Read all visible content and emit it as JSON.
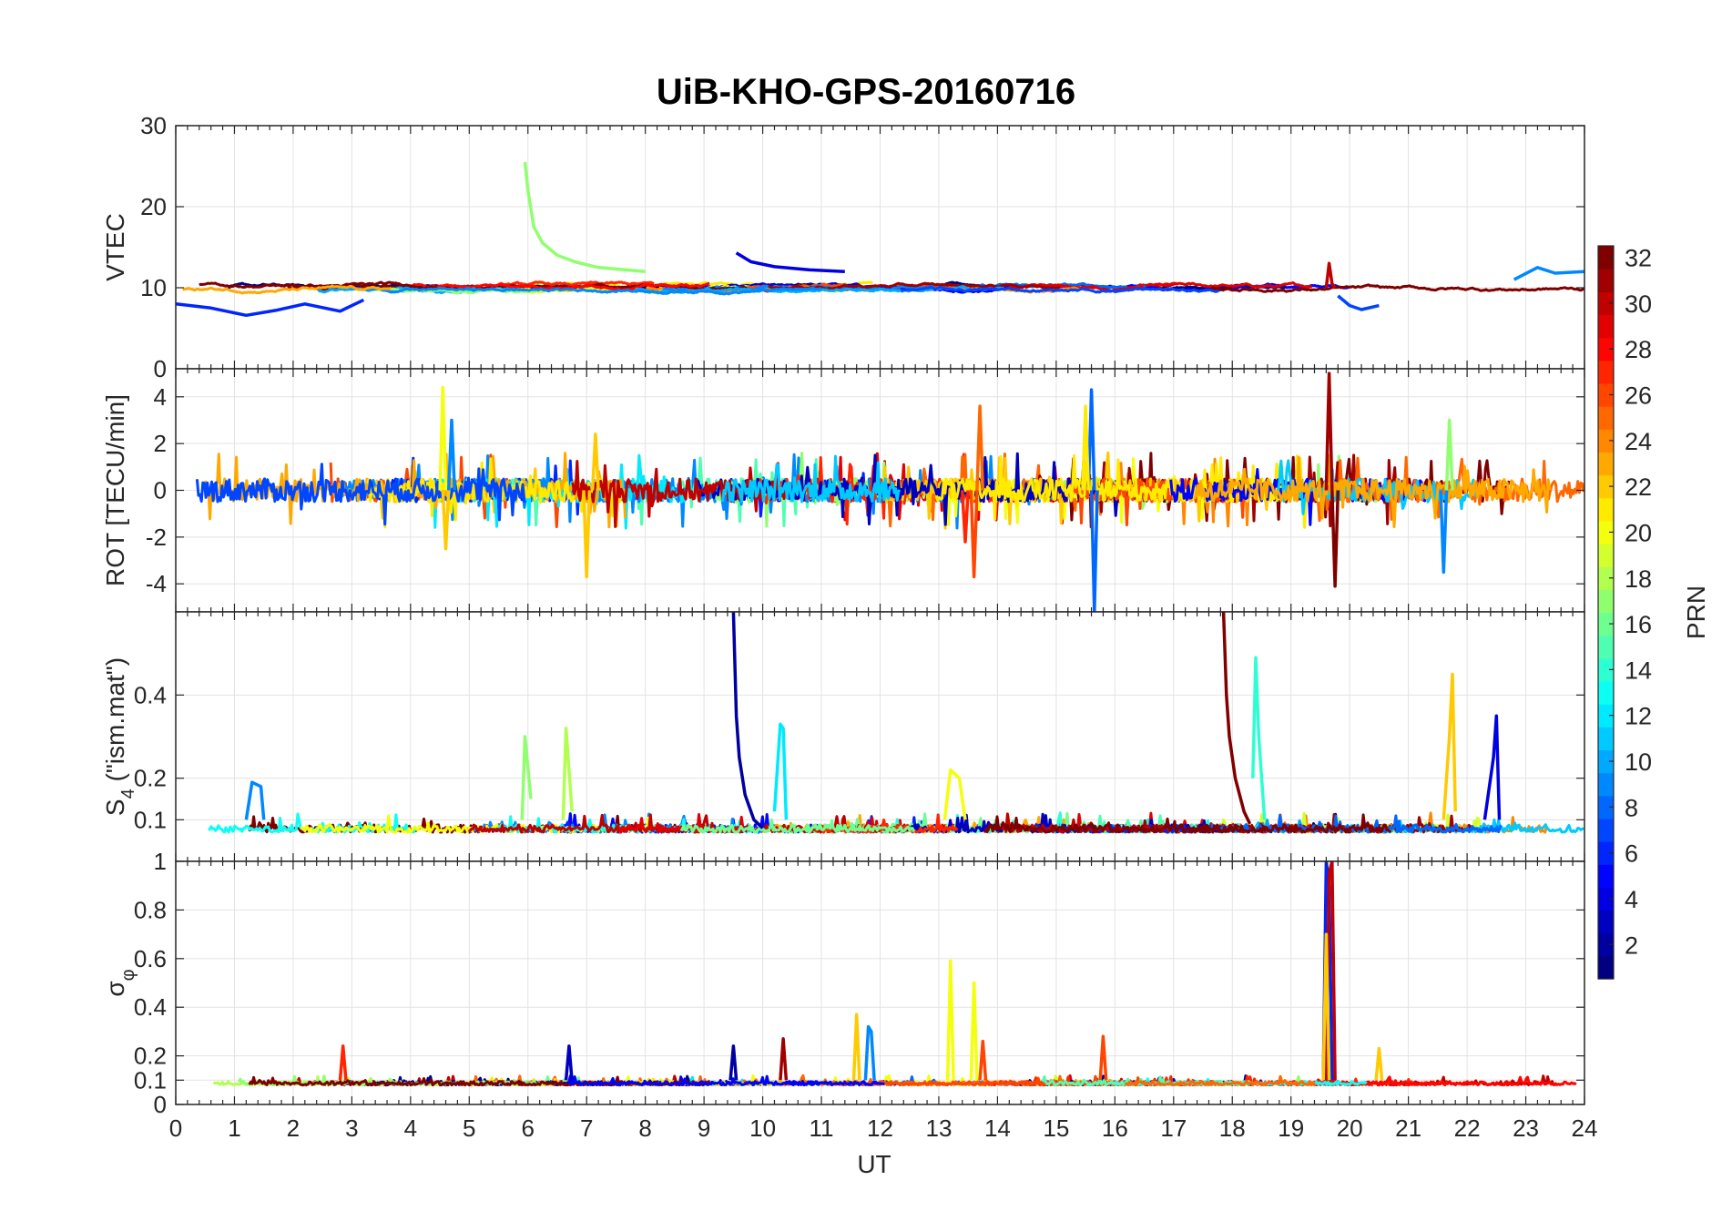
{
  "chart_data": {
    "title": "UiB-KHO-GPS-20160716",
    "type": "line",
    "xlabel": "UT",
    "xlim": [
      0,
      24
    ],
    "xticks": [
      0,
      1,
      2,
      3,
      4,
      5,
      6,
      7,
      8,
      9,
      10,
      11,
      12,
      13,
      14,
      15,
      16,
      17,
      18,
      19,
      20,
      21,
      22,
      23,
      24
    ],
    "grid": true,
    "colorbar": {
      "label": "PRN",
      "range": [
        1,
        32
      ],
      "ticks": [
        2,
        4,
        6,
        8,
        10,
        12,
        14,
        16,
        18,
        20,
        22,
        24,
        26,
        28,
        30,
        32
      ],
      "colormap": "jet"
    },
    "panels": [
      {
        "ylabel": "VTEC",
        "ylim": [
          0,
          30
        ],
        "yticks": [
          0,
          10,
          20,
          30
        ],
        "baseline": 10,
        "noise": 0.6,
        "features": [
          {
            "prn": 17,
            "x": [
              5.95,
              6.0,
              6.1,
              6.25,
              6.5,
              6.8,
              7.2,
              8.0
            ],
            "y": [
              25.5,
              22.0,
              17.5,
              15.5,
              14.0,
              13.2,
              12.5,
              12.0
            ]
          },
          {
            "prn": 4,
            "x": [
              9.55,
              9.8,
              10.2,
              10.8,
              11.4
            ],
            "y": [
              14.3,
              13.2,
              12.6,
              12.2,
              12.0
            ]
          },
          {
            "prn": 6,
            "x": [
              0.0,
              0.6,
              1.2,
              1.7,
              2.2,
              2.8,
              3.2
            ],
            "y": [
              8.0,
              7.5,
              6.6,
              7.2,
              8.0,
              7.1,
              8.5
            ]
          },
          {
            "prn": 30,
            "x": [
              19.6,
              19.65,
              19.7,
              19.75
            ],
            "y": [
              10.0,
              13.0,
              10.5,
              10.0
            ]
          },
          {
            "prn": 7,
            "x": [
              19.8,
              20.0,
              20.2,
              20.5
            ],
            "y": [
              9.0,
              7.8,
              7.3,
              7.8
            ]
          },
          {
            "prn": 9,
            "x": [
              22.8,
              23.2,
              23.5,
              24.0
            ],
            "y": [
              11.0,
              12.5,
              11.8,
              12.0
            ]
          }
        ]
      },
      {
        "ylabel": "ROT [TECU/min]",
        "ylim": [
          -5.2,
          5.2
        ],
        "yticks": [
          -4,
          -2,
          0,
          2,
          4
        ],
        "baseline": 0,
        "noise": 0.9,
        "features": [
          {
            "prn": 20,
            "x": [
              4.5,
              4.55,
              4.6
            ],
            "y": [
              0,
              4.4,
              0
            ]
          },
          {
            "prn": 9,
            "x": [
              4.65,
              4.7,
              4.75
            ],
            "y": [
              0,
              3.0,
              0
            ]
          },
          {
            "prn": 22,
            "x": [
              4.55,
              4.6,
              4.65
            ],
            "y": [
              0,
              -2.5,
              0
            ]
          },
          {
            "prn": 22,
            "x": [
              6.95,
              7.0,
              7.05
            ],
            "y": [
              0,
              -3.7,
              0
            ]
          },
          {
            "prn": 22,
            "x": [
              7.1,
              7.15,
              7.2
            ],
            "y": [
              0,
              2.4,
              0
            ]
          },
          {
            "prn": 26,
            "x": [
              13.55,
              13.6,
              13.65
            ],
            "y": [
              0,
              -3.7,
              0
            ]
          },
          {
            "prn": 25,
            "x": [
              13.65,
              13.7,
              13.75
            ],
            "y": [
              0,
              3.6,
              0
            ]
          },
          {
            "prn": 27,
            "x": [
              13.4,
              13.45,
              13.5
            ],
            "y": [
              0,
              -2.2,
              0
            ]
          },
          {
            "prn": 8,
            "x": [
              15.55,
              15.6,
              15.65
            ],
            "y": [
              0,
              4.3,
              0
            ]
          },
          {
            "prn": 8,
            "x": [
              15.6,
              15.65,
              15.7
            ],
            "y": [
              0,
              -5.2,
              0
            ]
          },
          {
            "prn": 21,
            "x": [
              15.45,
              15.5,
              15.55
            ],
            "y": [
              0,
              3.6,
              0
            ]
          },
          {
            "prn": 31,
            "x": [
              19.6,
              19.65,
              19.7
            ],
            "y": [
              0,
              5.0,
              0
            ]
          },
          {
            "prn": 32,
            "x": [
              19.7,
              19.75,
              19.8
            ],
            "y": [
              0,
              -4.1,
              0
            ]
          },
          {
            "prn": 17,
            "x": [
              21.65,
              21.7,
              21.75
            ],
            "y": [
              0,
              3.0,
              0
            ]
          },
          {
            "prn": 9,
            "x": [
              21.55,
              21.6,
              21.65
            ],
            "y": [
              0,
              -3.5,
              0
            ]
          }
        ]
      },
      {
        "ylabel": "S",
        "ylabel_sub": "4",
        "ylabel_rest": " (\"ism.mat\")",
        "ylim": [
          0,
          0.6
        ],
        "yticks": [
          0.1,
          0.2,
          0.4
        ],
        "baseline": 0.07,
        "noise": 0.03,
        "features": [
          {
            "prn": 2,
            "x": [
              9.5,
              9.55,
              9.6,
              9.7,
              9.85,
              10.0
            ],
            "y": [
              0.6,
              0.35,
              0.25,
              0.16,
              0.1,
              0.08
            ]
          },
          {
            "prn": 12,
            "x": [
              10.2,
              10.3,
              10.35,
              10.4
            ],
            "y": [
              0.12,
              0.33,
              0.32,
              0.1
            ]
          },
          {
            "prn": 32,
            "x": [
              17.85,
              17.9,
              17.95,
              18.05,
              18.2,
              18.3
            ],
            "y": [
              0.6,
              0.4,
              0.3,
              0.2,
              0.12,
              0.09
            ]
          },
          {
            "prn": 14,
            "x": [
              18.35,
              18.4,
              18.45,
              18.55
            ],
            "y": [
              0.2,
              0.49,
              0.3,
              0.1
            ]
          },
          {
            "prn": 22,
            "x": [
              21.6,
              21.7,
              21.75,
              21.8
            ],
            "y": [
              0.1,
              0.3,
              0.45,
              0.12
            ]
          },
          {
            "prn": 4,
            "x": [
              22.3,
              22.45,
              22.5,
              22.55
            ],
            "y": [
              0.1,
              0.25,
              0.35,
              0.1
            ]
          },
          {
            "prn": 17,
            "x": [
              5.9,
              5.95,
              6.05
            ],
            "y": [
              0.1,
              0.3,
              0.15
            ]
          },
          {
            "prn": 18,
            "x": [
              6.6,
              6.65,
              6.75
            ],
            "y": [
              0.1,
              0.32,
              0.12
            ]
          },
          {
            "prn": 9,
            "x": [
              1.2,
              1.3,
              1.45,
              1.5
            ],
            "y": [
              0.1,
              0.19,
              0.18,
              0.1
            ]
          },
          {
            "prn": 20,
            "x": [
              13.1,
              13.2,
              13.35,
              13.45
            ],
            "y": [
              0.1,
              0.22,
              0.2,
              0.1
            ]
          }
        ]
      },
      {
        "ylabel": "σ",
        "ylabel_sub": "φ",
        "ylim": [
          0,
          1
        ],
        "yticks": [
          0,
          0.1,
          0.2,
          0.4,
          0.6,
          0.8,
          1
        ],
        "baseline": 0.08,
        "noise": 0.025,
        "features": [
          {
            "prn": 6,
            "x": [
              19.55,
              19.6,
              19.65,
              19.7
            ],
            "y": [
              0.1,
              1.0,
              0.9,
              0.1
            ]
          },
          {
            "prn": 30,
            "x": [
              19.6,
              19.65,
              19.7,
              19.75
            ],
            "y": [
              0.1,
              0.95,
              1.0,
              0.1
            ]
          },
          {
            "prn": 22,
            "x": [
              19.55,
              19.6,
              19.65
            ],
            "y": [
              0.1,
              0.7,
              0.1
            ]
          },
          {
            "prn": 20,
            "x": [
              13.15,
              13.2,
              13.25
            ],
            "y": [
              0.1,
              0.59,
              0.1
            ]
          },
          {
            "prn": 20,
            "x": [
              13.55,
              13.6,
              13.65
            ],
            "y": [
              0.1,
              0.5,
              0.1
            ]
          },
          {
            "prn": 9,
            "x": [
              11.75,
              11.8,
              11.85,
              11.9
            ],
            "y": [
              0.1,
              0.32,
              0.3,
              0.1
            ]
          },
          {
            "prn": 22,
            "x": [
              11.55,
              11.6,
              11.65
            ],
            "y": [
              0.1,
              0.37,
              0.1
            ]
          },
          {
            "prn": 26,
            "x": [
              13.7,
              13.75,
              13.8
            ],
            "y": [
              0.1,
              0.26,
              0.1
            ]
          },
          {
            "prn": 31,
            "x": [
              10.3,
              10.35,
              10.4
            ],
            "y": [
              0.1,
              0.27,
              0.1
            ]
          },
          {
            "prn": 2,
            "x": [
              9.45,
              9.5,
              9.55
            ],
            "y": [
              0.1,
              0.24,
              0.1
            ]
          },
          {
            "prn": 3,
            "x": [
              6.65,
              6.7,
              6.75
            ],
            "y": [
              0.1,
              0.24,
              0.1
            ]
          },
          {
            "prn": 27,
            "x": [
              2.8,
              2.85,
              2.9
            ],
            "y": [
              0.1,
              0.24,
              0.1
            ]
          },
          {
            "prn": 26,
            "x": [
              15.75,
              15.8,
              15.85
            ],
            "y": [
              0.1,
              0.28,
              0.1
            ]
          },
          {
            "prn": 22,
            "x": [
              20.45,
              20.5,
              20.55
            ],
            "y": [
              0.1,
              0.23,
              0.1
            ]
          }
        ]
      }
    ]
  }
}
